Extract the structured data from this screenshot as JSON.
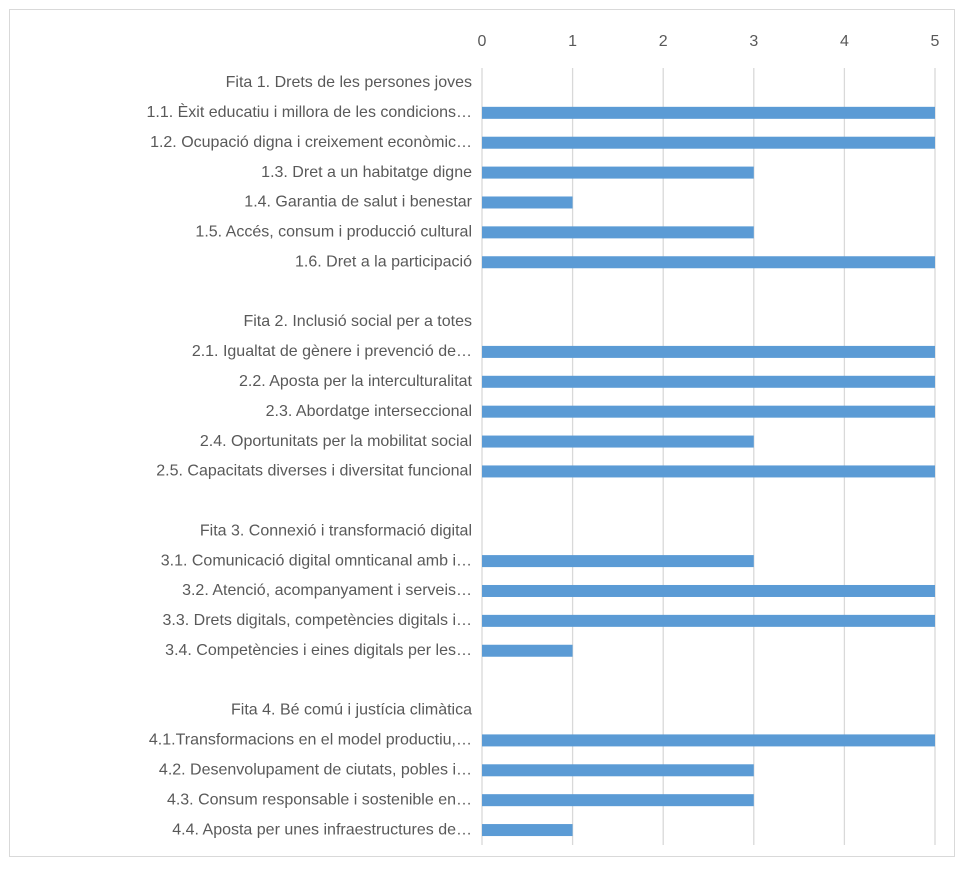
{
  "chart_data": {
    "type": "barh",
    "categories": [
      "Fita 1. Drets de les persones joves",
      "1.1. Èxit educatiu i millora de les condicions…",
      "1.2. Ocupació digna i creixement econòmic…",
      "1.3. Dret a un habitatge digne",
      "1.4. Garantia de salut i benestar",
      "1.5. Accés, consum i producció cultural",
      "1.6. Dret a la participació",
      null,
      "Fita 2. Inclusió social per a totes",
      "2.1. Igualtat de gènere i prevenció de…",
      "2.2. Aposta per la interculturalitat",
      "2.3. Abordatge interseccional",
      "2.4. Oportunitats per la mobilitat social",
      "2.5. Capacitats diverses i diversitat funcional",
      null,
      "Fita 3. Connexió i transformació digital",
      "3.1. Comunicació digital omnticanal amb i…",
      "3.2. Atenció, acompanyament i serveis…",
      "3.3. Drets digitals, competències digitals i…",
      "3.4. Competències i eines digitals per les…",
      null,
      "Fita 4. Bé comú i justícia climàtica",
      "4.1.Transformacions en el model productiu,…",
      "4.2. Desenvolupament de ciutats, pobles i…",
      "4.3. Consum responsable i sostenible en…",
      "4.4. Aposta per unes infraestructures de…"
    ],
    "values": [
      null,
      5,
      5,
      3,
      1,
      3,
      5,
      null,
      null,
      5,
      5,
      5,
      3,
      5,
      null,
      null,
      3,
      5,
      5,
      1,
      null,
      null,
      5,
      3,
      3,
      1
    ],
    "color": "#5b9bd5",
    "xlim": [
      0,
      5
    ],
    "xticks": [
      0,
      1,
      2,
      3,
      4,
      5
    ],
    "grid": true
  }
}
